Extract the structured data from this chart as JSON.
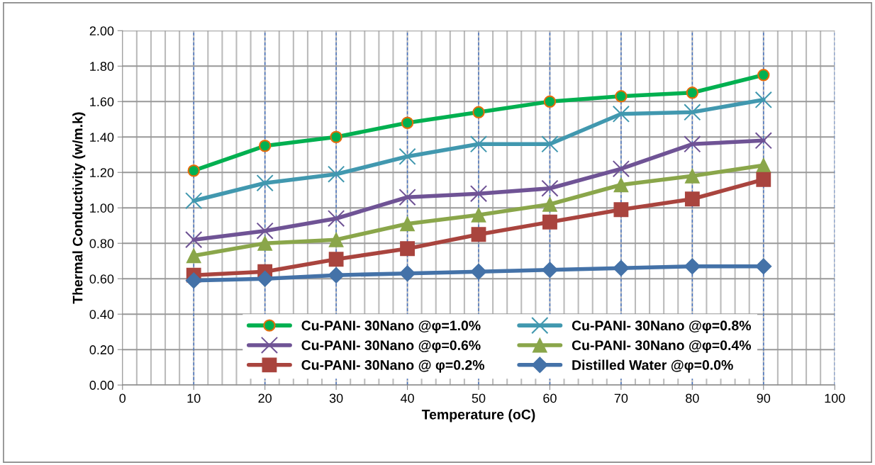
{
  "chart_data": {
    "type": "line",
    "xlabel": "Temperature (oC)",
    "ylabel": "Thermal Conductivity (w/m.k)",
    "x": [
      10,
      20,
      30,
      40,
      50,
      60,
      70,
      80,
      90
    ],
    "xlim": [
      0,
      100
    ],
    "xticks": [
      0,
      10,
      20,
      30,
      40,
      50,
      60,
      70,
      80,
      90,
      100
    ],
    "ylim": [
      0,
      2
    ],
    "yticks": [
      {
        "value": 0,
        "label": "0.00"
      },
      {
        "value": 0.2,
        "label": "0.20"
      },
      {
        "value": 0.4,
        "label": "0.40"
      },
      {
        "value": 0.6,
        "label": "0.60"
      },
      {
        "value": 0.8,
        "label": "0.80"
      },
      {
        "value": 1.0,
        "label": "1.00"
      },
      {
        "value": 1.2,
        "label": "1.20"
      },
      {
        "value": 1.4,
        "label": "1.40"
      },
      {
        "value": 1.6,
        "label": "1.60"
      },
      {
        "value": 1.8,
        "label": "1.80"
      },
      {
        "value": 2.0,
        "label": "2.00"
      }
    ],
    "grid": true,
    "legend": "bottom",
    "series": [
      {
        "name": "Cu-PANI- 30Nano @φ=1.0%",
        "color": "#00b050",
        "marker": "circle",
        "values": [
          1.21,
          1.35,
          1.4,
          1.48,
          1.54,
          1.6,
          1.63,
          1.65,
          1.75
        ]
      },
      {
        "name": "Cu-PANI- 30Nano @φ=0.8%",
        "color": "#4198af",
        "marker": "cross",
        "values": [
          1.04,
          1.14,
          1.19,
          1.29,
          1.36,
          1.36,
          1.53,
          1.54,
          1.61
        ]
      },
      {
        "name": "Cu-PANI- 30Nano @φ=0.6%",
        "color": "#6f5395",
        "marker": "cross",
        "values": [
          0.82,
          0.87,
          0.94,
          1.06,
          1.08,
          1.11,
          1.22,
          1.36,
          1.38
        ]
      },
      {
        "name": "Cu-PANI- 30Nano @φ=0.4%",
        "color": "#8aa64a",
        "marker": "triangle",
        "values": [
          0.73,
          0.8,
          0.82,
          0.91,
          0.96,
          1.02,
          1.13,
          1.18,
          1.24
        ]
      },
      {
        "name": "Cu-PANI- 30Nano @ φ=0.2%",
        "color": "#a9443e",
        "marker": "square",
        "values": [
          0.62,
          0.64,
          0.71,
          0.77,
          0.85,
          0.92,
          0.99,
          1.05,
          1.16
        ]
      },
      {
        "name": "Distilled Water @φ=0.0%",
        "color": "#4472a8",
        "marker": "diamond",
        "values": [
          0.59,
          0.6,
          0.62,
          0.63,
          0.64,
          0.65,
          0.66,
          0.67,
          0.67
        ]
      }
    ]
  }
}
